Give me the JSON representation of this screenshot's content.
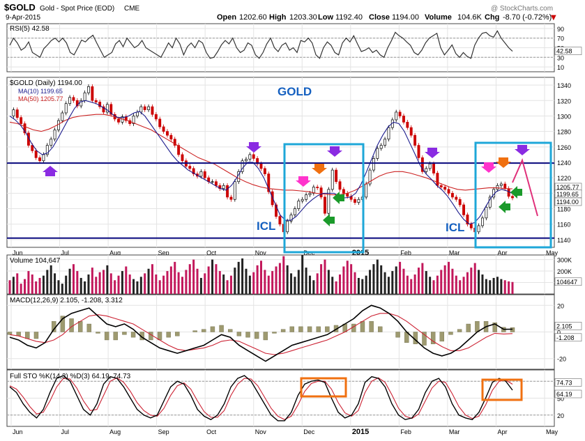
{
  "header": {
    "symbol": "$GOLD",
    "name": "Gold - Spot Price (EOD)",
    "exchange": "CME",
    "date": "9-Apr-2015",
    "watermark": "@ StockCharts.com",
    "open_label": "Open",
    "open": "1202.60",
    "high_label": "High",
    "high": "1203.30",
    "low_label": "Low",
    "low": "1192.40",
    "close_label": "Close",
    "close": "1194.00",
    "volume_label": "Volume",
    "volume": "104.6K",
    "chg_label": "Chg",
    "chg": "-8.70 (-0.72%)"
  },
  "colors": {
    "price_up": "#000000",
    "price_down": "#cc0000",
    "ma10": "#1a1a8c",
    "ma50": "#cc2222",
    "grid": "#e3e3e3",
    "annotation_box": "#1ea7d8",
    "sto_box": "#f07010",
    "support_line": "#0a0a80",
    "volume_down": "#c2185b",
    "volume_up": "#222222",
    "gold_label": "#1560c0"
  },
  "annotations": {
    "gold_label": "GOLD",
    "icl_label_1": "ICL",
    "icl_label_2": "ICL"
  },
  "chart_data": [
    {
      "panel": "RSI",
      "type": "line",
      "legend": "RSI(5) 42.58",
      "last_value_label": "42.58",
      "ylim": [
        0,
        100
      ],
      "yticks": [
        90,
        70,
        50,
        30,
        10
      ],
      "series": [
        {
          "name": "RSI(5)",
          "values": [
            55,
            70,
            60,
            45,
            50,
            62,
            40,
            35,
            30,
            48,
            56,
            65,
            70,
            62,
            70,
            60,
            40,
            35,
            50,
            66,
            62,
            70,
            76,
            60,
            45,
            30,
            35,
            40,
            58,
            65,
            52,
            70,
            60,
            50,
            55,
            65,
            50,
            45,
            40,
            35,
            30,
            45,
            60,
            50,
            70,
            58,
            35,
            52,
            60,
            50,
            65,
            60,
            40,
            28,
            30,
            42,
            56,
            65,
            58,
            70,
            50,
            40,
            45,
            60,
            55,
            35,
            28,
            40,
            58,
            70,
            50,
            42,
            55,
            60,
            45,
            50,
            40,
            65,
            62,
            70,
            60,
            35,
            28,
            50,
            62,
            55,
            40,
            35,
            60,
            70,
            62,
            75,
            58,
            42,
            45,
            50,
            40,
            45,
            35,
            30,
            50,
            65,
            82,
            75,
            70,
            62,
            55,
            40,
            35,
            45,
            60,
            70,
            75,
            80,
            50,
            35,
            45,
            56,
            38,
            30,
            40,
            32,
            28,
            55,
            70,
            80,
            82,
            75,
            72,
            85,
            70,
            60,
            50,
            42.58
          ]
        }
      ]
    },
    {
      "panel": "Price",
      "type": "candlestick",
      "title": "GOLD",
      "legend": [
        "$GOLD (Daily) 1194.00",
        "MA(10) 1199.65",
        "MA(50) 1205.77"
      ],
      "x_labels": [
        "Jun",
        "Jul",
        "Aug",
        "Sep",
        "Oct",
        "Nov",
        "Dec",
        "2015",
        "Feb",
        "Mar",
        "Apr",
        "May"
      ],
      "ylim": [
        1130,
        1350
      ],
      "yticks": [
        1340,
        1320,
        1300,
        1280,
        1260,
        1240,
        1220,
        1200,
        1180,
        1160,
        1140
      ],
      "last_value_labels": [
        "1205.77",
        "1199.65",
        "1194.00"
      ],
      "horizontal_lines": [
        1239,
        1142
      ],
      "close_path": [
        1300,
        1308,
        1298,
        1290,
        1278,
        1262,
        1255,
        1246,
        1242,
        1250,
        1262,
        1270,
        1282,
        1294,
        1304,
        1316,
        1324,
        1320,
        1313,
        1320,
        1330,
        1338,
        1320,
        1318,
        1312,
        1305,
        1315,
        1302,
        1296,
        1292,
        1299,
        1294,
        1290,
        1300,
        1305,
        1312,
        1308,
        1312,
        1302,
        1296,
        1286,
        1280,
        1275,
        1270,
        1262,
        1250,
        1242,
        1235,
        1232,
        1225,
        1222,
        1228,
        1220,
        1215,
        1215,
        1210,
        1206,
        1210,
        1195,
        1192,
        1215,
        1228,
        1242,
        1244,
        1250,
        1245,
        1238,
        1232,
        1225,
        1202,
        1185,
        1170,
        1160,
        1150,
        1164,
        1172,
        1180,
        1190,
        1192,
        1198,
        1200,
        1208,
        1207,
        1195,
        1174,
        1205,
        1230,
        1215,
        1205,
        1200,
        1196,
        1192,
        1188,
        1192,
        1195,
        1212,
        1230,
        1245,
        1258,
        1262,
        1270,
        1285,
        1295,
        1305,
        1300,
        1292,
        1285,
        1275,
        1262,
        1246,
        1228,
        1232,
        1238,
        1226,
        1210,
        1208,
        1205,
        1200,
        1195,
        1192,
        1185,
        1172,
        1160,
        1155,
        1150,
        1158,
        1168,
        1182,
        1195,
        1205,
        1210,
        1212,
        1206,
        1196,
        1194.0
      ],
      "ma10_path": [
        1300,
        1295,
        1288,
        1278,
        1265,
        1255,
        1250,
        1252,
        1260,
        1272,
        1285,
        1298,
        1310,
        1318,
        1320,
        1318,
        1316,
        1312,
        1308,
        1302,
        1298,
        1298,
        1300,
        1304,
        1306,
        1300,
        1290,
        1280,
        1270,
        1260,
        1250,
        1242,
        1236,
        1230,
        1226,
        1222,
        1218,
        1214,
        1210,
        1206,
        1204,
        1210,
        1220,
        1232,
        1240,
        1240,
        1232,
        1220,
        1204,
        1188,
        1172,
        1165,
        1165,
        1170,
        1178,
        1186,
        1192,
        1197,
        1200,
        1200,
        1200,
        1196,
        1194,
        1195,
        1200,
        1212,
        1228,
        1245,
        1262,
        1275,
        1286,
        1292,
        1290,
        1280,
        1265,
        1250,
        1235,
        1225,
        1218,
        1210,
        1204,
        1196,
        1186,
        1175,
        1166,
        1160,
        1162,
        1170,
        1182,
        1194,
        1202,
        1205,
        1203,
        1199.65
      ],
      "ma50_path": [
        1292,
        1290,
        1286,
        1282,
        1280,
        1283,
        1288,
        1294,
        1298,
        1300,
        1301,
        1302,
        1302,
        1300,
        1297,
        1294,
        1290,
        1286,
        1282,
        1276,
        1270,
        1264,
        1258,
        1252,
        1246,
        1242,
        1238,
        1232,
        1226,
        1220,
        1215,
        1211,
        1208,
        1206,
        1205,
        1204,
        1204,
        1203,
        1202,
        1200,
        1199,
        1198,
        1198,
        1200,
        1204,
        1210,
        1216,
        1222,
        1226,
        1228,
        1228,
        1226,
        1223,
        1220,
        1216,
        1212,
        1208,
        1205,
        1204,
        1205,
        1206,
        1207,
        1207,
        1206,
        1205.77
      ],
      "markers": [
        {
          "type": "arrow-up",
          "color": "purple",
          "x": 1,
          "y": 1235
        },
        {
          "type": "arrow-down",
          "color": "purple",
          "x": 5,
          "y": 1262
        },
        {
          "type": "arrow-down",
          "color": "magenta",
          "x": 6,
          "y": 1210
        },
        {
          "type": "arrow-down",
          "color": "orange",
          "x": 6.3,
          "y": 1234
        },
        {
          "type": "arrow-down",
          "color": "purple",
          "x": 6.5,
          "y": 1255
        },
        {
          "type": "arrow-left",
          "color": "green",
          "x": 6.6,
          "y": 1190
        },
        {
          "type": "arrow-left",
          "color": "green",
          "x": 6.3,
          "y": 1160
        },
        {
          "type": "arrow-down",
          "color": "purple",
          "x": 8.6,
          "y": 1254
        },
        {
          "type": "arrow-down",
          "color": "magenta",
          "x": 9.8,
          "y": 1223
        },
        {
          "type": "arrow-down",
          "color": "orange",
          "x": 10.1,
          "y": 1230
        },
        {
          "type": "arrow-down",
          "color": "purple",
          "x": 10.4,
          "y": 1257
        },
        {
          "type": "arrow-left",
          "color": "green",
          "x": 10.3,
          "y": 1200
        },
        {
          "type": "arrow-left",
          "color": "green",
          "x": 10.0,
          "y": 1182
        }
      ]
    },
    {
      "panel": "Volume",
      "type": "bar",
      "legend": "Volume 104,647",
      "last_value_label": "104647",
      "yticks": [
        "300K",
        "200K",
        "100K"
      ],
      "ylim": [
        0,
        340000
      ],
      "values": [
        120000,
        150000,
        180000,
        90000,
        130000,
        200000,
        170000,
        110000,
        140000,
        160000,
        210000,
        250000,
        180000,
        120000,
        90000,
        160000,
        220000,
        260000,
        200000,
        140000,
        110000,
        170000,
        230000,
        150000,
        190000,
        210000,
        250000,
        180000,
        120000,
        160000,
        200000,
        240000,
        170000,
        130000,
        110000,
        150000,
        180000,
        220000,
        260000,
        170000,
        120000,
        160000,
        200000,
        240000,
        280000,
        190000,
        150000,
        210000,
        260000,
        300000,
        220000,
        140000,
        180000,
        240000,
        300000,
        260000,
        200000,
        170000,
        120000,
        160000,
        230000,
        280000,
        310000,
        220000,
        160000,
        190000,
        250000,
        290000,
        210000,
        160000,
        200000,
        240000,
        270000,
        330000,
        250000,
        180000,
        150000,
        210000,
        340000,
        230000,
        160000,
        120000,
        180000,
        260000,
        300000,
        210000,
        150000,
        110000,
        170000,
        240000,
        290000,
        260000,
        190000,
        140000,
        130000,
        160000,
        210000,
        260000,
        300000,
        250000,
        190000,
        150000,
        200000,
        240000,
        280000,
        220000,
        160000,
        130000,
        170000,
        230000,
        270000,
        200000,
        150000,
        120000,
        160000,
        210000,
        250000,
        280000,
        220000,
        160000,
        120000,
        150000,
        190000,
        230000,
        270000,
        210000,
        170000,
        130000,
        120000,
        140000,
        150000,
        130000,
        120000,
        110000,
        104647
      ]
    },
    {
      "panel": "MACD",
      "type": "line",
      "legend": "MACD(12,26,9) 2.105, -1.208, 3.312",
      "last_value_labels": [
        "2.105",
        "-1.208"
      ],
      "yticks": [
        20,
        0,
        -20
      ],
      "ylim": [
        -28,
        28
      ],
      "series": [
        {
          "name": "MACD",
          "values": [
            -4,
            -6,
            -10,
            -12,
            -8,
            2,
            10,
            14,
            16,
            18,
            12,
            6,
            4,
            6,
            2,
            -4,
            -8,
            -12,
            -14,
            -16,
            -14,
            -12,
            -10,
            -6,
            -2,
            -4,
            -10,
            -14,
            -18,
            -22,
            -18,
            -14,
            -10,
            -8,
            -6,
            -4,
            -2,
            2,
            6,
            10,
            16,
            20,
            18,
            14,
            8,
            0,
            -6,
            -12,
            -16,
            -18,
            -16,
            -12,
            -6,
            0,
            4,
            6,
            2,
            2.105
          ]
        },
        {
          "name": "Signal",
          "values": [
            -2,
            -3,
            -5,
            -7,
            -8,
            -6,
            -2,
            4,
            8,
            12,
            13,
            12,
            10,
            8,
            6,
            2,
            -2,
            -6,
            -10,
            -13,
            -14,
            -13,
            -12,
            -10,
            -7,
            -6,
            -7,
            -10,
            -13,
            -16,
            -17,
            -16,
            -14,
            -12,
            -10,
            -8,
            -6,
            -3,
            0,
            4,
            8,
            12,
            14,
            14,
            12,
            8,
            3,
            -2,
            -7,
            -11,
            -14,
            -14,
            -12,
            -8,
            -4,
            -1,
            -1.5,
            -1.208
          ]
        }
      ],
      "histogram": [
        -2,
        -3,
        -5,
        -5,
        0,
        8,
        12,
        10,
        8,
        6,
        -1,
        -6,
        -6,
        -2,
        -4,
        -6,
        -6,
        -6,
        -4,
        -3,
        0,
        1,
        2,
        4,
        5,
        2,
        -3,
        -4,
        -5,
        -6,
        -1,
        2,
        4,
        4,
        4,
        4,
        4,
        5,
        6,
        6,
        8,
        8,
        4,
        0,
        -4,
        -8,
        -9,
        -10,
        -9,
        -7,
        -2,
        2,
        6,
        8,
        8,
        7,
        3.5,
        3.312
      ]
    },
    {
      "panel": "Full STO",
      "type": "line",
      "legend": "Full STO %K(14,3) %D(3) 64.19, 74.73",
      "last_value_labels": [
        "74.73",
        "64.19"
      ],
      "yticks": [
        80,
        50,
        20
      ],
      "ylim": [
        0,
        100
      ],
      "series": [
        {
          "name": "%K",
          "values": [
            70,
            60,
            40,
            25,
            15,
            30,
            60,
            85,
            90,
            80,
            55,
            30,
            20,
            40,
            75,
            88,
            85,
            70,
            50,
            30,
            20,
            15,
            20,
            45,
            70,
            80,
            75,
            55,
            30,
            18,
            12,
            20,
            40,
            70,
            85,
            90,
            80,
            60,
            40,
            20,
            10,
            10,
            25,
            55,
            75,
            80,
            82,
            78,
            50,
            25,
            15,
            20,
            40,
            78,
            88,
            85,
            70,
            40,
            20,
            12,
            15,
            30,
            60,
            80,
            85,
            70,
            40,
            20,
            15,
            12,
            25,
            50,
            78,
            85,
            80,
            64.19
          ]
        },
        {
          "name": "%D",
          "values": [
            72,
            66,
            52,
            35,
            22,
            25,
            45,
            70,
            85,
            84,
            68,
            45,
            28,
            30,
            55,
            80,
            86,
            78,
            62,
            42,
            28,
            20,
            18,
            32,
            55,
            72,
            77,
            66,
            45,
            26,
            16,
            16,
            28,
            55,
            75,
            85,
            84,
            72,
            52,
            32,
            18,
            12,
            18,
            38,
            62,
            76,
            80,
            80,
            66,
            42,
            24,
            18,
            28,
            60,
            80,
            86,
            78,
            56,
            32,
            18,
            14,
            22,
            45,
            68,
            80,
            78,
            58,
            35,
            20,
            14,
            18,
            38,
            64,
            80,
            82,
            74.73
          ]
        }
      ]
    }
  ]
}
